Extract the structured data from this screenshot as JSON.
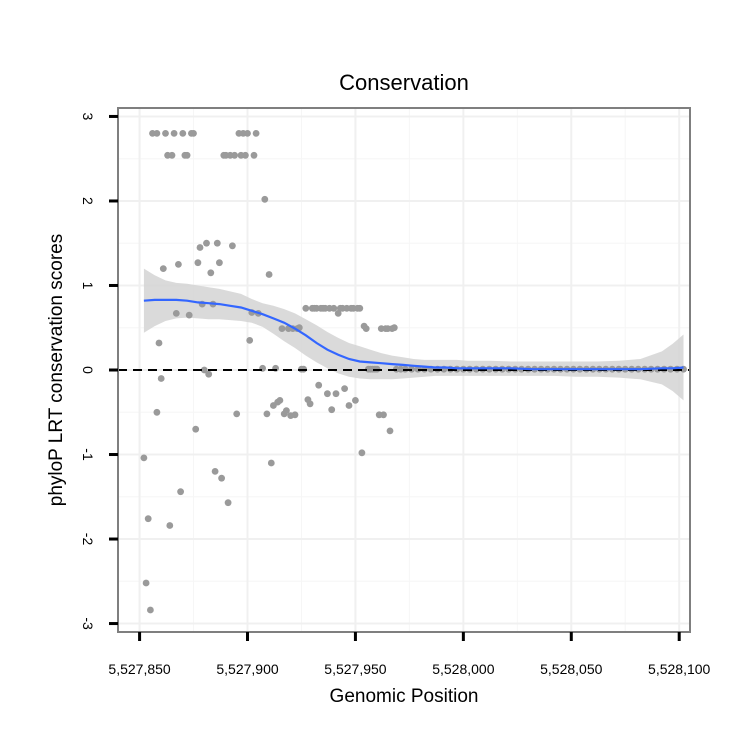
{
  "chart_data": {
    "type": "scatter",
    "title": "Conservation",
    "xlabel": "Genomic Position",
    "ylabel": "phyloP LRT conservation scores",
    "xlim": [
      5527840,
      5528105
    ],
    "ylim": [
      -3.1,
      3.1
    ],
    "x_ticks": [
      5527850,
      5527900,
      5527950,
      5528000,
      5528050,
      5528100
    ],
    "x_tick_labels": [
      "5,527,850",
      "5,527,900",
      "5,527,950",
      "5,528,000",
      "5,528,050",
      "5,528,100"
    ],
    "y_ticks": [
      -3,
      -2,
      -1,
      0,
      1,
      2,
      3
    ],
    "y_tick_labels": [
      "-3",
      "-2",
      "-1",
      "0",
      "1",
      "2",
      "3"
    ],
    "grid": true,
    "reference_line": {
      "y": 0,
      "style": "dashed"
    },
    "colors": {
      "points": "#9a9a9a",
      "smooth": "#3366ff",
      "band": "#d3d3d3",
      "panel_border": "#7f7f7f",
      "grid": "#f0f0f0"
    },
    "series": [
      {
        "name": "points",
        "points": [
          [
            5527852,
            -1.04
          ],
          [
            5527853,
            -2.52
          ],
          [
            5527854,
            -1.76
          ],
          [
            5527855,
            -2.84
          ],
          [
            5527856,
            2.8
          ],
          [
            5527858,
            2.8
          ],
          [
            5527858,
            -0.5
          ],
          [
            5527859,
            0.32
          ],
          [
            5527860,
            -0.1
          ],
          [
            5527861,
            1.2
          ],
          [
            5527862,
            2.8
          ],
          [
            5527863,
            2.54
          ],
          [
            5527864,
            -1.84
          ],
          [
            5527865,
            2.54
          ],
          [
            5527866,
            2.8
          ],
          [
            5527867,
            0.67
          ],
          [
            5527868,
            1.25
          ],
          [
            5527869,
            -1.44
          ],
          [
            5527870,
            2.8
          ],
          [
            5527871,
            2.54
          ],
          [
            5527872,
            2.54
          ],
          [
            5527873,
            0.65
          ],
          [
            5527874,
            2.8
          ],
          [
            5527875,
            2.8
          ],
          [
            5527876,
            -0.7
          ],
          [
            5527877,
            1.27
          ],
          [
            5527878,
            1.45
          ],
          [
            5527879,
            0.78
          ],
          [
            5527880,
            0.0
          ],
          [
            5527881,
            1.5
          ],
          [
            5527882,
            -0.05
          ],
          [
            5527883,
            1.15
          ],
          [
            5527884,
            0.78
          ],
          [
            5527885,
            -1.2
          ],
          [
            5527886,
            1.5
          ],
          [
            5527887,
            1.27
          ],
          [
            5527888,
            -1.28
          ],
          [
            5527889,
            2.54
          ],
          [
            5527890,
            2.54
          ],
          [
            5527891,
            -1.57
          ],
          [
            5527892,
            2.54
          ],
          [
            5527893,
            1.47
          ],
          [
            5527894,
            2.54
          ],
          [
            5527895,
            -0.52
          ],
          [
            5527896,
            2.8
          ],
          [
            5527897,
            2.54
          ],
          [
            5527898,
            2.8
          ],
          [
            5527899,
            2.54
          ],
          [
            5527900,
            2.8
          ],
          [
            5527901,
            0.35
          ],
          [
            5527902,
            0.68
          ],
          [
            5527903,
            2.54
          ],
          [
            5527904,
            2.8
          ],
          [
            5527905,
            0.67
          ],
          [
            5527907,
            0.02
          ],
          [
            5527908,
            2.02
          ],
          [
            5527909,
            -0.52
          ],
          [
            5527910,
            1.13
          ],
          [
            5527911,
            -1.1
          ],
          [
            5527912,
            -0.42
          ],
          [
            5527913,
            0.02
          ],
          [
            5527914,
            -0.38
          ],
          [
            5527915,
            -0.36
          ],
          [
            5527916,
            0.49
          ],
          [
            5527917,
            -0.52
          ],
          [
            5527918,
            -0.48
          ],
          [
            5527919,
            0.49
          ],
          [
            5527920,
            -0.54
          ],
          [
            5527921,
            0.49
          ],
          [
            5527922,
            -0.53
          ],
          [
            5527923,
            0.49
          ],
          [
            5527924,
            0.5
          ],
          [
            5527925,
            0.01
          ],
          [
            5527926,
            0.01
          ],
          [
            5527927,
            0.73
          ],
          [
            5527928,
            -0.35
          ],
          [
            5527929,
            -0.4
          ],
          [
            5527930,
            0.73
          ],
          [
            5527931,
            0.73
          ],
          [
            5527932,
            0.73
          ],
          [
            5527933,
            -0.18
          ],
          [
            5527934,
            0.73
          ],
          [
            5527935,
            0.73
          ],
          [
            5527936,
            0.73
          ],
          [
            5527937,
            -0.28
          ],
          [
            5527938,
            0.73
          ],
          [
            5527939,
            -0.47
          ],
          [
            5527940,
            0.73
          ],
          [
            5527941,
            -0.28
          ],
          [
            5527942,
            0.67
          ],
          [
            5527943,
            0.73
          ],
          [
            5527944,
            0.73
          ],
          [
            5527945,
            -0.22
          ],
          [
            5527946,
            0.73
          ],
          [
            5527947,
            -0.42
          ],
          [
            5527948,
            0.73
          ],
          [
            5527949,
            0.73
          ],
          [
            5527950,
            -0.36
          ],
          [
            5527951,
            0.73
          ],
          [
            5527952,
            0.73
          ],
          [
            5527953,
            -0.98
          ],
          [
            5527954,
            0.52
          ],
          [
            5527955,
            0.49
          ],
          [
            5527956,
            0.01
          ],
          [
            5527957,
            0.01
          ],
          [
            5527958,
            0.01
          ],
          [
            5527959,
            0.01
          ],
          [
            5527960,
            0.01
          ],
          [
            5527961,
            -0.53
          ],
          [
            5527962,
            0.49
          ],
          [
            5527963,
            -0.53
          ],
          [
            5527964,
            0.49
          ],
          [
            5527965,
            0.49
          ],
          [
            5527966,
            -0.72
          ],
          [
            5527967,
            0.49
          ],
          [
            5527968,
            0.5
          ],
          [
            5527969,
            0.01
          ],
          [
            5527971,
            0.01
          ],
          [
            5527973,
            0.01
          ],
          [
            5527976,
            0.01
          ],
          [
            5527979,
            0.01
          ],
          [
            5527982,
            0.01
          ],
          [
            5527985,
            0.01
          ],
          [
            5527988,
            0.01
          ],
          [
            5527991,
            0.01
          ],
          [
            5527994,
            0.01
          ],
          [
            5527997,
            0.01
          ],
          [
            5528000,
            0.01
          ],
          [
            5528003,
            0.01
          ],
          [
            5528006,
            0.01
          ],
          [
            5528009,
            0.01
          ],
          [
            5528012,
            0.01
          ],
          [
            5528015,
            0.01
          ],
          [
            5528018,
            0.01
          ],
          [
            5528021,
            0.01
          ],
          [
            5528024,
            0.01
          ],
          [
            5528027,
            0.01
          ],
          [
            5528030,
            0.01
          ],
          [
            5528033,
            0.01
          ],
          [
            5528036,
            0.01
          ],
          [
            5528039,
            0.01
          ],
          [
            5528042,
            0.01
          ],
          [
            5528045,
            0.01
          ],
          [
            5528048,
            0.01
          ],
          [
            5528051,
            0.01
          ],
          [
            5528054,
            0.01
          ],
          [
            5528057,
            0.01
          ],
          [
            5528060,
            0.01
          ],
          [
            5528063,
            0.01
          ],
          [
            5528066,
            0.01
          ],
          [
            5528069,
            0.01
          ],
          [
            5528072,
            0.01
          ],
          [
            5528075,
            0.01
          ],
          [
            5528078,
            0.01
          ],
          [
            5528081,
            0.01
          ],
          [
            5528084,
            0.01
          ],
          [
            5528087,
            0.01
          ],
          [
            5528090,
            0.01
          ],
          [
            5528093,
            0.01
          ],
          [
            5528096,
            0.01
          ],
          [
            5528099,
            0.01
          ],
          [
            5528102,
            0.01
          ]
        ]
      },
      {
        "name": "smooth_fit",
        "x": [
          5527852,
          5527857,
          5527862,
          5527867,
          5527872,
          5527877,
          5527882,
          5527887,
          5527892,
          5527897,
          5527902,
          5527907,
          5527912,
          5527917,
          5527922,
          5527927,
          5527932,
          5527937,
          5527942,
          5527947,
          5527952,
          5527957,
          5527962,
          5527967,
          5527972,
          5527977,
          5527982,
          5527987,
          5527992,
          5527997,
          5528002,
          5528012,
          5528022,
          5528032,
          5528042,
          5528052,
          5528062,
          5528072,
          5528082,
          5528092,
          5528097,
          5528102
        ],
        "y": [
          0.82,
          0.83,
          0.83,
          0.83,
          0.82,
          0.8,
          0.79,
          0.78,
          0.76,
          0.74,
          0.7,
          0.66,
          0.61,
          0.56,
          0.49,
          0.41,
          0.32,
          0.24,
          0.18,
          0.13,
          0.1,
          0.09,
          0.08,
          0.07,
          0.06,
          0.05,
          0.04,
          0.03,
          0.03,
          0.02,
          0.02,
          0.02,
          0.02,
          0.01,
          0.01,
          0.01,
          0.01,
          0.01,
          0.01,
          0.02,
          0.02,
          0.03
        ],
        "lower": [
          0.44,
          0.52,
          0.58,
          0.61,
          0.62,
          0.61,
          0.6,
          0.6,
          0.59,
          0.58,
          0.56,
          0.51,
          0.43,
          0.34,
          0.26,
          0.17,
          0.09,
          0.02,
          -0.04,
          -0.08,
          -0.1,
          -0.11,
          -0.11,
          -0.11,
          -0.1,
          -0.09,
          -0.08,
          -0.07,
          -0.07,
          -0.07,
          -0.07,
          -0.07,
          -0.07,
          -0.07,
          -0.07,
          -0.08,
          -0.08,
          -0.09,
          -0.11,
          -0.17,
          -0.25,
          -0.36
        ],
        "upper": [
          1.2,
          1.12,
          1.06,
          1.03,
          1.02,
          1.0,
          0.98,
          0.96,
          0.93,
          0.9,
          0.84,
          0.79,
          0.76,
          0.72,
          0.67,
          0.6,
          0.53,
          0.45,
          0.38,
          0.32,
          0.28,
          0.24,
          0.2,
          0.17,
          0.15,
          0.13,
          0.12,
          0.12,
          0.12,
          0.12,
          0.11,
          0.11,
          0.1,
          0.1,
          0.1,
          0.1,
          0.1,
          0.11,
          0.13,
          0.22,
          0.31,
          0.42
        ]
      }
    ]
  }
}
